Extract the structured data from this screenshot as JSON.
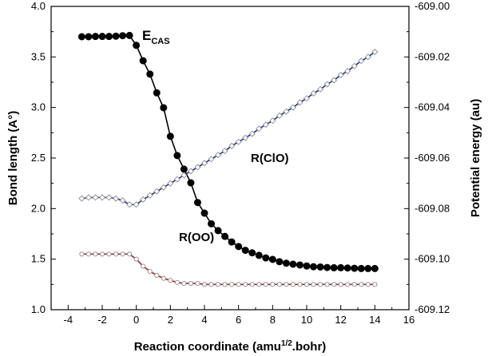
{
  "chart_data": {
    "type": "line",
    "xlabel": "Reaction coordinate (amu^{1/2}.bohr)",
    "ylabel_left": "Bond length (A°)",
    "ylabel_right": "Potential energy (au)",
    "xlim": [
      -5,
      16
    ],
    "ylim_left": [
      1.0,
      4.0
    ],
    "ylim_right": [
      -609.12,
      -609.0
    ],
    "x_ticks": [
      -4,
      -2,
      0,
      2,
      4,
      6,
      8,
      10,
      12,
      14,
      16
    ],
    "y_left_ticks": [
      "1.0",
      "1.5",
      "2.0",
      "2.5",
      "3.0",
      "3.5",
      "4.0"
    ],
    "y_right_ticks": [
      "-609.12",
      "-609.10",
      "-609.08",
      "-609.06",
      "-609.04",
      "-609.02",
      "-609.00"
    ],
    "grid": false,
    "annotations": {
      "ecas_main": "E",
      "ecas_sub": "CAS",
      "rclo": "R(ClO)",
      "roo": "R(OO)"
    },
    "series": [
      {
        "name": "E_CAS",
        "axis": "right",
        "color": "#000000",
        "marker": "filled-circle",
        "x": [
          -3.2,
          -2.8,
          -2.4,
          -2.0,
          -1.6,
          -1.2,
          -0.8,
          -0.4,
          0.0,
          0.4,
          0.8,
          1.2,
          1.6,
          2.0,
          2.4,
          2.8,
          3.2,
          3.6,
          4.0,
          4.4,
          4.8,
          5.2,
          5.6,
          6.0,
          6.4,
          6.8,
          7.2,
          7.6,
          8.0,
          8.4,
          8.8,
          9.2,
          9.6,
          10.0,
          10.4,
          10.8,
          11.2,
          11.6,
          12.0,
          12.4,
          12.8,
          13.2,
          13.6,
          14.0
        ],
        "values": [
          -609.012,
          -609.012,
          -609.0119,
          -609.0119,
          -609.0119,
          -609.0118,
          -609.0116,
          -609.0115,
          -609.0154,
          -609.0215,
          -609.0268,
          -609.0342,
          -609.0401,
          -609.0514,
          -609.059,
          -609.0644,
          -609.0698,
          -609.0776,
          -609.0818,
          -609.086,
          -609.0887,
          -609.091,
          -609.0932,
          -609.095,
          -609.0965,
          -609.0975,
          -609.0985,
          -609.0995,
          -609.1001,
          -609.101,
          -609.1016,
          -609.102,
          -609.1023,
          -609.1027,
          -609.103,
          -609.1031,
          -609.1033,
          -609.1034,
          -609.1034,
          -609.1035,
          -609.1036,
          -609.1037,
          -609.1037,
          -609.1037
        ]
      },
      {
        "name": "R(ClO)",
        "axis": "left",
        "color": "#1f2f8f",
        "marker": "open-diamond",
        "x": [
          -3.2,
          -2.8,
          -2.4,
          -2.0,
          -1.6,
          -1.2,
          -0.8,
          -0.4,
          0.0,
          0.4,
          0.8,
          1.2,
          1.6,
          2.0,
          2.4,
          2.8,
          3.2,
          3.6,
          4.0,
          4.4,
          4.8,
          5.2,
          5.6,
          6.0,
          6.4,
          6.8,
          7.2,
          7.6,
          8.0,
          8.4,
          8.8,
          9.2,
          9.6,
          10.0,
          10.4,
          10.8,
          11.2,
          11.6,
          12.0,
          12.4,
          12.8,
          13.2,
          13.6,
          14.0
        ],
        "values": [
          2.1,
          2.11,
          2.11,
          2.11,
          2.11,
          2.1,
          2.08,
          2.04,
          2.04,
          2.09,
          2.13,
          2.17,
          2.21,
          2.25,
          2.29,
          2.33,
          2.37,
          2.41,
          2.45,
          2.49,
          2.53,
          2.57,
          2.62,
          2.66,
          2.7,
          2.74,
          2.79,
          2.83,
          2.87,
          2.92,
          2.96,
          3.0,
          3.05,
          3.09,
          3.14,
          3.18,
          3.23,
          3.27,
          3.32,
          3.36,
          3.41,
          3.46,
          3.5,
          3.55
        ]
      },
      {
        "name": "R(OO)",
        "axis": "left",
        "color": "#a82020",
        "marker": "open-circle",
        "x": [
          -3.2,
          -2.8,
          -2.4,
          -2.0,
          -1.6,
          -1.2,
          -0.8,
          -0.4,
          0.0,
          0.4,
          0.8,
          1.2,
          1.6,
          2.0,
          2.4,
          2.8,
          3.2,
          3.6,
          4.0,
          4.4,
          4.8,
          5.2,
          5.6,
          6.0,
          6.4,
          6.8,
          7.2,
          7.6,
          8.0,
          8.4,
          8.8,
          9.2,
          9.6,
          10.0,
          10.4,
          10.8,
          11.2,
          11.6,
          12.0,
          12.4,
          12.8,
          13.2,
          13.6,
          14.0
        ],
        "values": [
          1.55,
          1.55,
          1.55,
          1.55,
          1.55,
          1.55,
          1.55,
          1.55,
          1.5,
          1.43,
          1.38,
          1.34,
          1.31,
          1.29,
          1.27,
          1.26,
          1.26,
          1.26,
          1.25,
          1.25,
          1.25,
          1.25,
          1.25,
          1.25,
          1.25,
          1.25,
          1.25,
          1.25,
          1.25,
          1.25,
          1.25,
          1.25,
          1.25,
          1.25,
          1.25,
          1.25,
          1.25,
          1.25,
          1.25,
          1.25,
          1.25,
          1.25,
          1.25,
          1.25
        ]
      }
    ]
  }
}
